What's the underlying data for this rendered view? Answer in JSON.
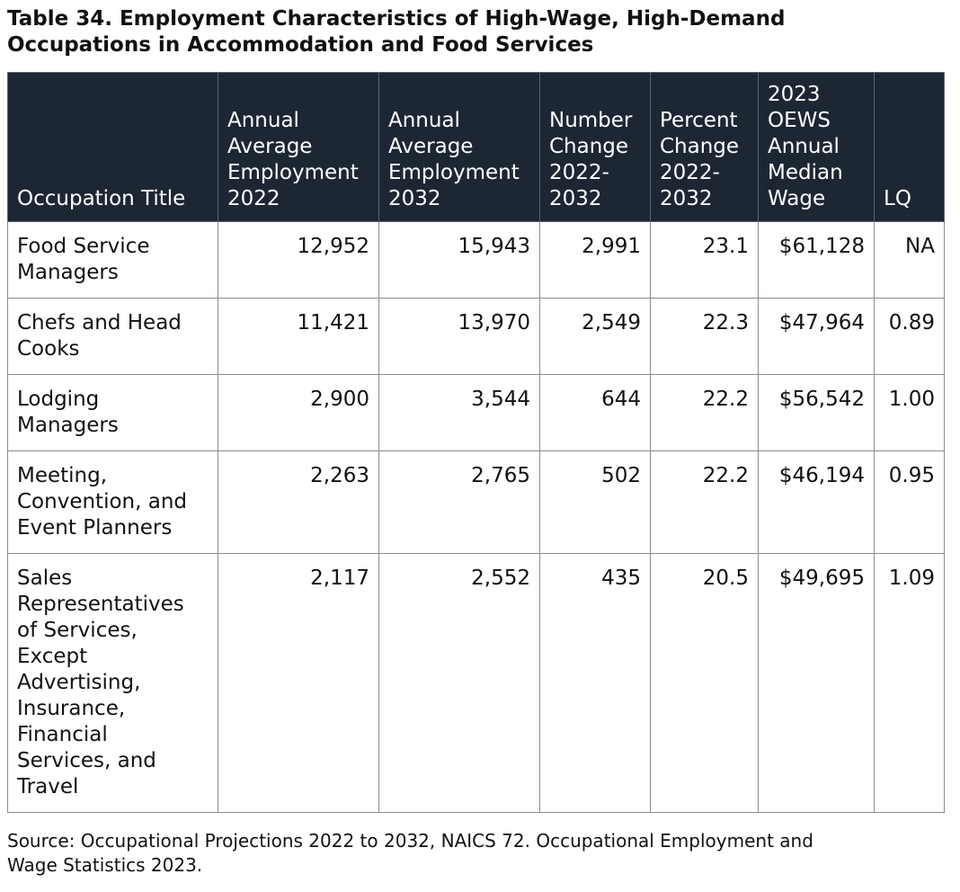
{
  "title": {
    "line1": "Table 34. Employment Characteristics of High-Wage, High-Demand",
    "line2": "Occupations in Accommodation and Food Services"
  },
  "table": {
    "headers": [
      {
        "lines": [
          "Occupation Title"
        ]
      },
      {
        "lines": [
          "Annual",
          "Average",
          "Employment",
          "2022"
        ]
      },
      {
        "lines": [
          "Annual",
          "Average",
          "Employment",
          "2032"
        ]
      },
      {
        "lines": [
          "Number",
          "Change",
          "2022-",
          "2032"
        ]
      },
      {
        "lines": [
          "Percent",
          "Change",
          "2022-",
          "2032"
        ]
      },
      {
        "lines": [
          "2023",
          "OEWS",
          "Annual",
          "Median",
          "Wage"
        ]
      },
      {
        "lines": [
          "LQ"
        ]
      }
    ],
    "rows": [
      {
        "title": [
          "Food Service",
          "Managers"
        ],
        "emp2022": "12,952",
        "emp2032": "15,943",
        "numchange": "2,991",
        "pctchange": "23.1",
        "wage": "$61,128",
        "lq": "NA"
      },
      {
        "title": [
          "Chefs and Head",
          "Cooks"
        ],
        "emp2022": "11,421",
        "emp2032": "13,970",
        "numchange": "2,549",
        "pctchange": "22.3",
        "wage": "$47,964",
        "lq": "0.89"
      },
      {
        "title": [
          "Lodging",
          "Managers"
        ],
        "emp2022": "2,900",
        "emp2032": "3,544",
        "numchange": "644",
        "pctchange": "22.2",
        "wage": "$56,542",
        "lq": "1.00"
      },
      {
        "title": [
          "Meeting,",
          "Convention, and",
          "Event Planners"
        ],
        "emp2022": "2,263",
        "emp2032": "2,765",
        "numchange": "502",
        "pctchange": "22.2",
        "wage": "$46,194",
        "lq": "0.95"
      },
      {
        "title": [
          "Sales",
          "Representatives",
          "of Services,",
          "Except",
          "Advertising,",
          "Insurance,",
          "Financial",
          "Services, and",
          "Travel"
        ],
        "emp2022": "2,117",
        "emp2032": "2,552",
        "numchange": "435",
        "pctchange": "20.5",
        "wage": "$49,695",
        "lq": "1.09"
      }
    ]
  },
  "source": {
    "line1": "Source: Occupational Projections 2022 to 2032, NAICS 72. Occupational Employment and",
    "line2": "Wage Statistics 2023."
  }
}
